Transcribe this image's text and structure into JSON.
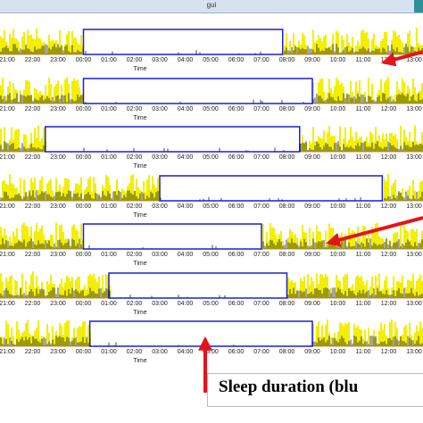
{
  "window": {
    "title": "gui"
  },
  "colors": {
    "activity": "#f2ef00",
    "trace": "#1a1a1a",
    "sleep_box": "#1a1fd1",
    "arrow": "#e3141b"
  },
  "panels": [
    {
      "xlabel": "Time",
      "ticks": [
        "21:00",
        "22:00",
        "23:00",
        "00:00",
        "01:00",
        "02:00",
        "03:00",
        "04:00",
        "05:00",
        "06:00",
        "07:00",
        "08:00",
        "09:00",
        "10:00",
        "11:00",
        "12:00",
        "13:00"
      ],
      "sleep_start": "00:00",
      "sleep_end": "07:50"
    },
    {
      "xlabel": "Time",
      "ticks": [
        "21:00",
        "22:00",
        "23:00",
        "00:00",
        "01:00",
        "02:00",
        "03:00",
        "04:00",
        "05:00",
        "06:00",
        "07:00",
        "08:00",
        "09:00",
        "10:00",
        "11:00",
        "12:00",
        "13:00"
      ],
      "sleep_start": "00:00",
      "sleep_end": "09:00"
    },
    {
      "xlabel": "Time",
      "ticks": [
        "21:00",
        "22:00",
        "23:00",
        "00:00",
        "01:00",
        "02:00",
        "03:00",
        "04:00",
        "05:00",
        "06:00",
        "07:00",
        "08:00",
        "09:00",
        "10:00",
        "11:00",
        "12:00",
        "13:00"
      ],
      "sleep_start": "22:30",
      "sleep_end": "08:30"
    },
    {
      "xlabel": "Time",
      "ticks": [
        "21:00",
        "22:00",
        "23:00",
        "00:00",
        "01:00",
        "02:00",
        "03:00",
        "04:00",
        "05:00",
        "06:00",
        "07:00",
        "08:00",
        "09:00",
        "10:00",
        "11:00",
        "12:00",
        "13:00"
      ],
      "sleep_start": "03:00",
      "sleep_end": "11:45"
    },
    {
      "xlabel": "Time",
      "ticks": [
        "21:00",
        "22:00",
        "23:00",
        "00:00",
        "01:00",
        "02:00",
        "03:00",
        "04:00",
        "05:00",
        "06:00",
        "07:00",
        "08:00",
        "09:00",
        "10:00",
        "11:00",
        "12:00",
        "13:00"
      ],
      "sleep_start": "00:00",
      "sleep_end": "07:00"
    },
    {
      "xlabel": "Time",
      "ticks": [
        "21:00",
        "22:00",
        "23:00",
        "00:00",
        "01:00",
        "02:00",
        "03:00",
        "04:00",
        "05:00",
        "06:00",
        "07:00",
        "08:00",
        "09:00",
        "10:00",
        "11:00",
        "12:00",
        "13:00"
      ],
      "sleep_start": "01:00",
      "sleep_end": "08:00"
    },
    {
      "xlabel": "Time",
      "ticks": [
        "21:00",
        "22:00",
        "23:00",
        "00:00",
        "01:00",
        "02:00",
        "03:00",
        "04:00",
        "05:00",
        "06:00",
        "07:00",
        "08:00",
        "09:00",
        "10:00",
        "11:00",
        "12:00",
        "13:00"
      ],
      "sleep_start": "00:15",
      "sleep_end": "09:00"
    }
  ],
  "callout": {
    "label": "Sleep duration  (blu"
  }
}
